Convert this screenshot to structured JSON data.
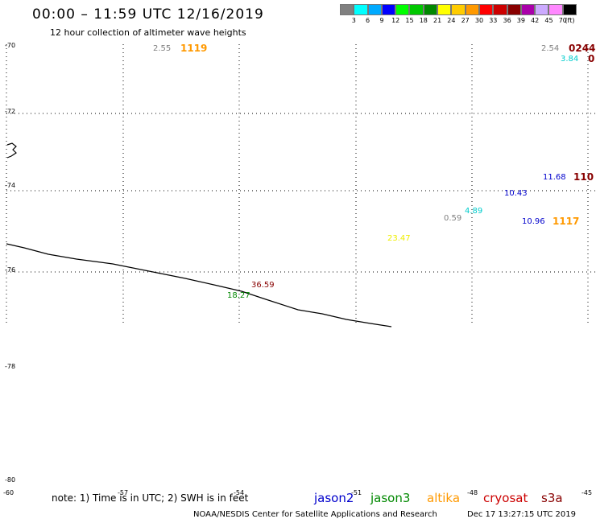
{
  "header": {
    "title": "00:00 – 11:59 UTC 12/16/2019",
    "subtitle": "12 hour collection of altimeter wave heights"
  },
  "legend": {
    "colors": [
      "#808080",
      "#00ffff",
      "#00aaff",
      "#0000ff",
      "#00ff00",
      "#00c800",
      "#008800",
      "#ffff00",
      "#ffcc00",
      "#ff9900",
      "#ff0000",
      "#cc0000",
      "#880000",
      "#aa00aa",
      "#ccaaff",
      "#ff88ff",
      "#000000"
    ],
    "ticks": [
      "3",
      "6",
      "9",
      "12",
      "15",
      "18",
      "21",
      "24",
      "27",
      "30",
      "33",
      "36",
      "39",
      "42",
      "45",
      "70",
      "(ft)"
    ]
  },
  "map": {
    "lat_labels": [
      "-70",
      "-72",
      "-74",
      "-76",
      "-78",
      "-80"
    ],
    "lon_labels": [
      "-60",
      "-57",
      "-54",
      "-51",
      "-48",
      "-45"
    ]
  },
  "observations": [
    {
      "value": "2.55",
      "color": "#808080"
    },
    {
      "value": "1119",
      "color": "#ff9900"
    },
    {
      "value": "2.54",
      "color": "#808080"
    },
    {
      "value": "0244",
      "color": "#880000"
    },
    {
      "value": "3.84",
      "color": "#00cccc"
    },
    {
      "value": "0",
      "color": "#880000"
    },
    {
      "value": "11.68",
      "color": "#0000cc"
    },
    {
      "value": "110",
      "color": "#880000"
    },
    {
      "value": "10.43",
      "color": "#0000cc"
    },
    {
      "value": "4.89",
      "color": "#00cccc"
    },
    {
      "value": "0.59",
      "color": "#808080"
    },
    {
      "value": "10.96",
      "color": "#0000cc"
    },
    {
      "value": "1117",
      "color": "#ff9900"
    },
    {
      "value": "23.47",
      "color": "#eeee00"
    },
    {
      "value": "36.59",
      "color": "#880000"
    },
    {
      "value": "18.27",
      "color": "#008800"
    }
  ],
  "note": "note: 1) Time is in UTC; 2) SWH is in feet",
  "satellites": [
    {
      "name": "jason2",
      "color": "#0000cc"
    },
    {
      "name": "jason3",
      "color": "#008800"
    },
    {
      "name": "altika",
      "color": "#ff9900"
    },
    {
      "name": "cryosat",
      "color": "#cc0000"
    },
    {
      "name": "s3a",
      "color": "#880000"
    }
  ],
  "footer": {
    "source": "NOAA/NESDIS Center for Satellite Applications and Research",
    "timestamp": "Dec 17 13:27:15 UTC 2019"
  }
}
